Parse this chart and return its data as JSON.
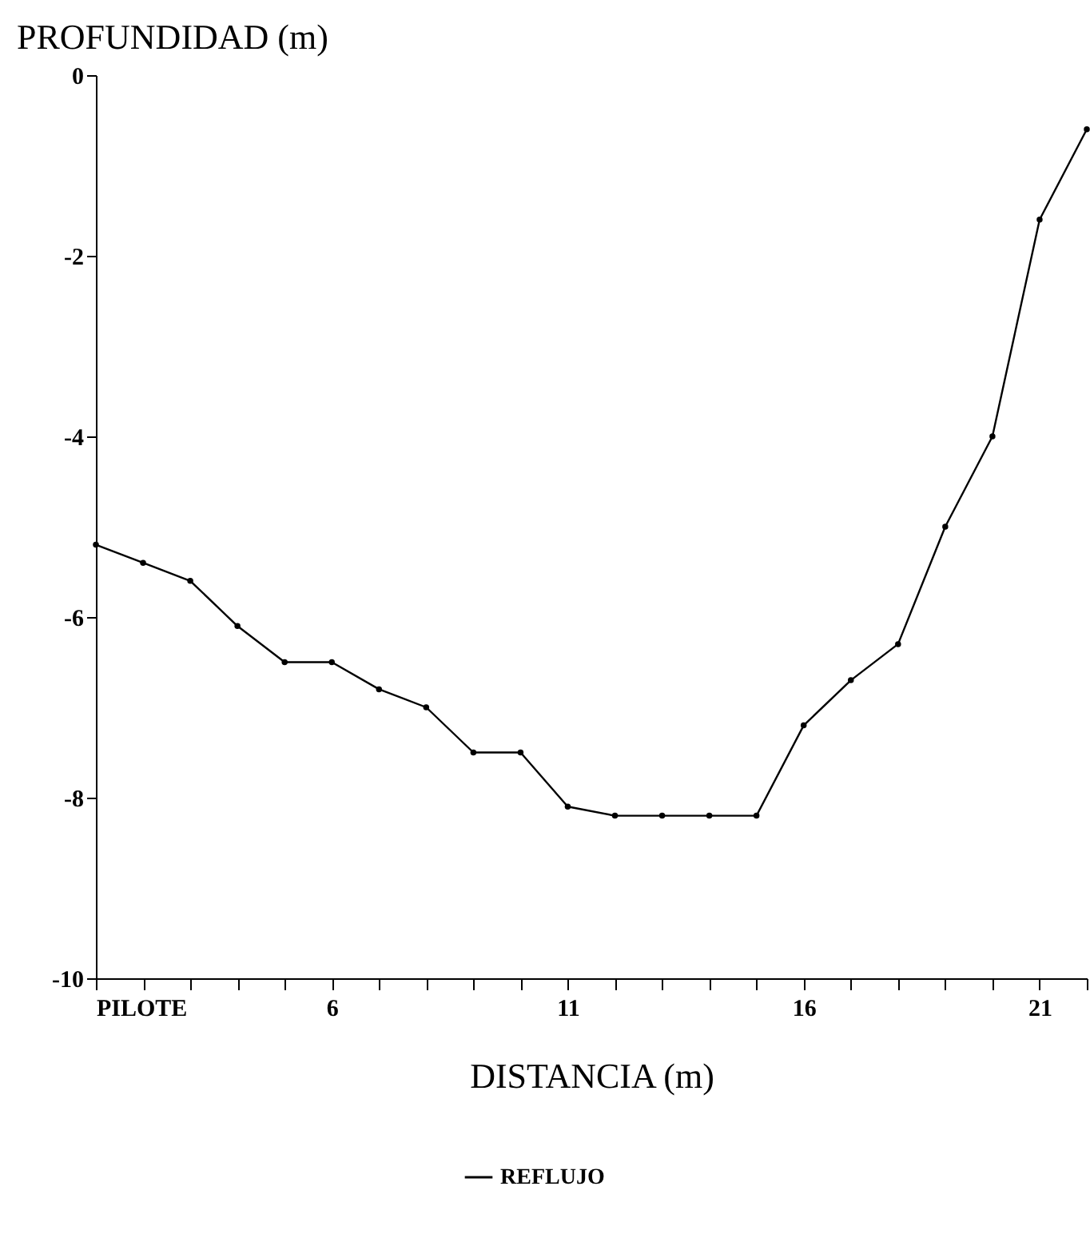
{
  "chart_data": {
    "type": "line",
    "xlabel": "DISTANCIA (m)",
    "ylabel": "PROFUNDIDAD (m)",
    "x": [
      1,
      2,
      3,
      4,
      5,
      6,
      7,
      8,
      9,
      10,
      11,
      12,
      13,
      14,
      15,
      16,
      17,
      18,
      19,
      20,
      21,
      22
    ],
    "series": [
      {
        "name": "REFLUJO",
        "color": "#000000",
        "values": [
          -5.2,
          -5.4,
          -5.6,
          -6.1,
          -6.5,
          -6.5,
          -6.8,
          -7.0,
          -7.5,
          -7.5,
          -8.1,
          -8.2,
          -8.2,
          -8.2,
          -8.2,
          -7.2,
          -6.7,
          -6.3,
          -5.0,
          -4.0,
          -1.6,
          -0.6
        ]
      }
    ],
    "xlim": [
      1,
      22
    ],
    "xticks": [
      {
        "value": 1,
        "label": "PILOTE"
      },
      {
        "value": 2,
        "label": null
      },
      {
        "value": 3,
        "label": null
      },
      {
        "value": 4,
        "label": null
      },
      {
        "value": 5,
        "label": null
      },
      6,
      {
        "value": 7,
        "label": null
      },
      {
        "value": 8,
        "label": null
      },
      {
        "value": 9,
        "label": null
      },
      {
        "value": 10,
        "label": null
      },
      11,
      {
        "value": 12,
        "label": null
      },
      {
        "value": 13,
        "label": null
      },
      {
        "value": 14,
        "label": null
      },
      {
        "value": 15,
        "label": null
      },
      16,
      {
        "value": 17,
        "label": null
      },
      {
        "value": 18,
        "label": null
      },
      {
        "value": 19,
        "label": null
      },
      {
        "value": 20,
        "label": null
      },
      21,
      {
        "value": 22,
        "label": null
      }
    ],
    "ylim": [
      -10,
      0
    ],
    "yticks": [
      -10,
      -8,
      -6,
      -4,
      -2,
      0
    ],
    "grid": false,
    "legend": "bottom",
    "marker": "circle",
    "line_style": "solid"
  }
}
